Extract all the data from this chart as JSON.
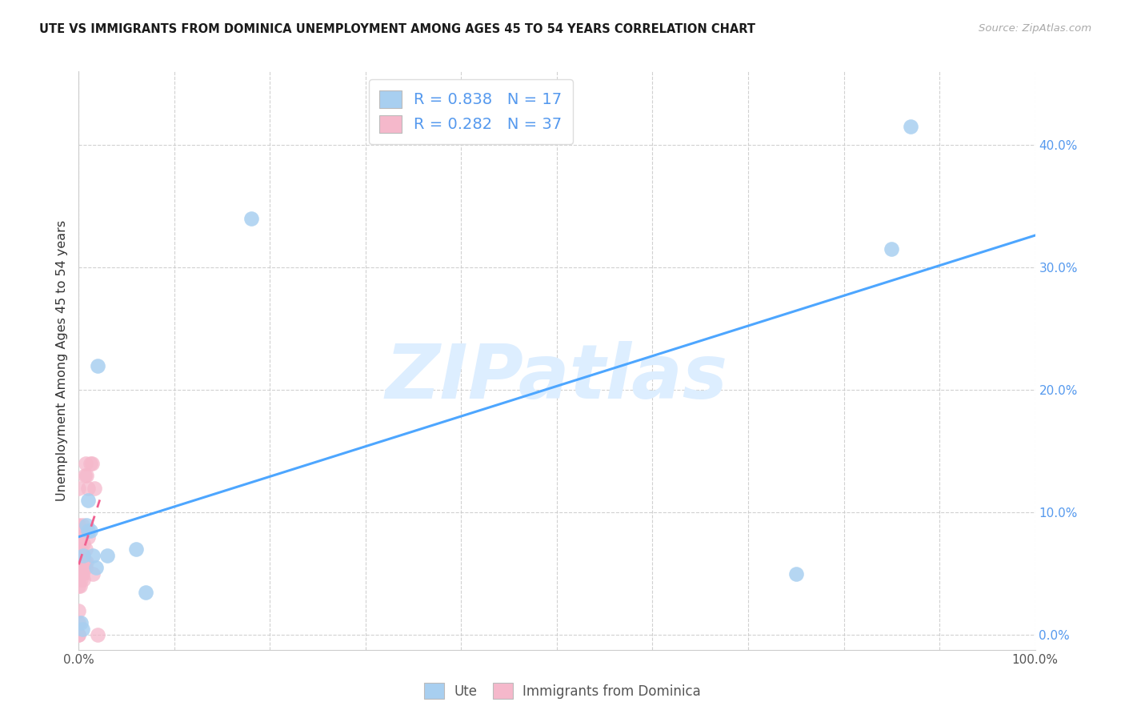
{
  "title": "UTE VS IMMIGRANTS FROM DOMINICA UNEMPLOYMENT AMONG AGES 45 TO 54 YEARS CORRELATION CHART",
  "source": "Source: ZipAtlas.com",
  "ylabel": "Unemployment Among Ages 45 to 54 years",
  "xlim": [
    0.0,
    1.0
  ],
  "ylim": [
    -0.012,
    0.46
  ],
  "xtick_vals": [
    0.0,
    0.1,
    0.2,
    0.3,
    0.4,
    0.5,
    0.6,
    0.7,
    0.8,
    0.9,
    1.0
  ],
  "xticklabels_show": {
    "0.0": "0.0%",
    "1.0": "100.0%"
  },
  "ytick_vals": [
    0.0,
    0.1,
    0.2,
    0.3,
    0.4
  ],
  "yticklabels": [
    "0.0%",
    "10.0%",
    "20.0%",
    "30.0%",
    "40.0%"
  ],
  "ute_label": "Ute",
  "dom_label": "Immigrants from Dominica",
  "ute_R": "0.838",
  "ute_N": "17",
  "dom_R": "0.282",
  "dom_N": "37",
  "ute_scatter_color": "#a8cff0",
  "dom_scatter_color": "#f5b8cb",
  "trend_ute_color": "#4da6ff",
  "trend_dom_color": "#f06090",
  "tick_color": "#5599ee",
  "watermark_text": "ZIPatlas",
  "watermark_color": "#ddeeff",
  "ute_x": [
    0.002,
    0.004,
    0.005,
    0.008,
    0.01,
    0.01,
    0.012,
    0.015,
    0.018,
    0.02,
    0.03,
    0.06,
    0.07,
    0.18,
    0.75,
    0.85,
    0.87
  ],
  "ute_y": [
    0.01,
    0.005,
    0.065,
    0.09,
    0.085,
    0.11,
    0.085,
    0.065,
    0.055,
    0.22,
    0.065,
    0.07,
    0.035,
    0.34,
    0.05,
    0.315,
    0.415
  ],
  "dom_x": [
    0.0,
    0.0,
    0.0,
    0.0,
    0.0,
    0.0,
    0.0,
    0.0,
    0.0,
    0.0,
    0.0,
    0.001,
    0.001,
    0.001,
    0.002,
    0.002,
    0.003,
    0.003,
    0.004,
    0.004,
    0.005,
    0.005,
    0.005,
    0.006,
    0.006,
    0.007,
    0.007,
    0.007,
    0.008,
    0.008,
    0.01,
    0.01,
    0.012,
    0.014,
    0.015,
    0.016,
    0.02
  ],
  "dom_y": [
    0.0,
    0.0,
    0.01,
    0.02,
    0.04,
    0.05,
    0.06,
    0.07,
    0.08,
    0.09,
    0.12,
    0.04,
    0.06,
    0.08,
    0.045,
    0.07,
    0.05,
    0.065,
    0.05,
    0.09,
    0.045,
    0.06,
    0.075,
    0.06,
    0.13,
    0.055,
    0.07,
    0.14,
    0.06,
    0.13,
    0.08,
    0.12,
    0.14,
    0.14,
    0.05,
    0.12,
    0.0
  ]
}
